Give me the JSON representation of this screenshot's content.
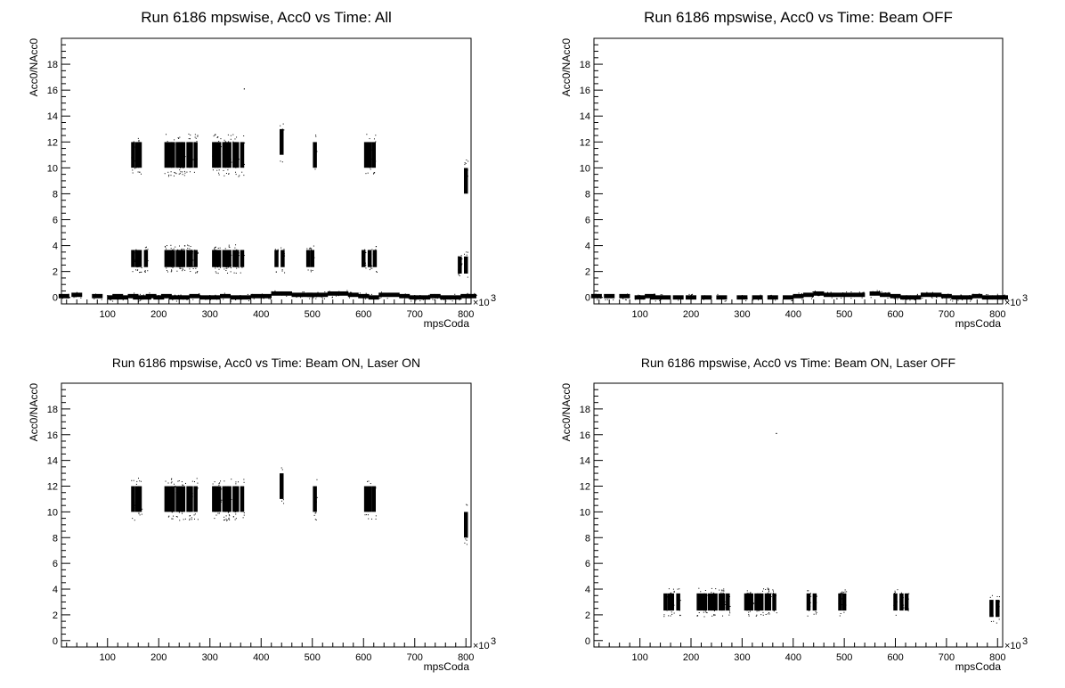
{
  "chart_data": [
    {
      "type": "scatter",
      "title": "Run 6186 mpswise, Acc0 vs Time: All",
      "xlabel": "mpsCoda",
      "ylabel": "Acc0/NAcc0",
      "x_multiplier": "×10",
      "x_multiplier_exp": "3",
      "xlim": [
        10,
        810
      ],
      "ylim": [
        -0.5,
        20
      ],
      "xticks": [
        100,
        200,
        300,
        400,
        500,
        600,
        700,
        800
      ],
      "yticks": [
        0,
        2,
        4,
        6,
        8,
        10,
        12,
        14,
        16,
        18
      ],
      "series": [
        {
          "x": [
            15,
            40,
            80,
            110,
            120,
            130,
            150,
            160,
            175,
            185,
            200,
            215,
            230,
            250,
            270,
            290,
            310,
            330,
            350,
            370,
            390,
            410,
            430,
            450,
            470,
            490,
            500,
            520,
            540,
            560,
            580,
            600,
            620,
            640,
            660,
            680,
            700,
            720,
            740,
            760,
            780,
            800,
            810
          ],
          "y": [
            0.1,
            0.2,
            0.1,
            0.0,
            0.1,
            0.0,
            0.1,
            0.0,
            0.0,
            0.1,
            0.0,
            0.1,
            0.0,
            0.0,
            0.1,
            0.0,
            0.0,
            0.1,
            0.0,
            0.0,
            0.1,
            0.1,
            0.3,
            0.3,
            0.2,
            0.2,
            0.2,
            0.2,
            0.3,
            0.3,
            0.2,
            0.1,
            0.0,
            0.2,
            0.2,
            0.1,
            0.0,
            0.0,
            0.1,
            0.0,
            0.0,
            0.1,
            0.1
          ]
        },
        {
          "x": [
            150,
            158,
            163,
            215,
            222,
            228,
            237,
            243,
            248,
            258,
            263,
            272,
            308,
            313,
            318,
            328,
            333,
            338,
            348,
            353,
            363,
            440,
            505,
            605,
            612,
            620,
            800
          ],
          "y": [
            11,
            11,
            11,
            11,
            11,
            11,
            11,
            11,
            11,
            11,
            11,
            11,
            11,
            11,
            11,
            11,
            11,
            11,
            11,
            11,
            11,
            12,
            11,
            11,
            11,
            11,
            9
          ]
        },
        {
          "x": [
            150,
            158,
            163,
            175,
            215,
            222,
            228,
            237,
            243,
            248,
            258,
            263,
            272,
            308,
            313,
            318,
            328,
            333,
            338,
            348,
            353,
            363,
            430,
            442,
            492,
            500,
            600,
            612,
            622,
            788,
            800
          ],
          "y": [
            3,
            3,
            3,
            3,
            3,
            3,
            3,
            3,
            3,
            3,
            3,
            3,
            3,
            3,
            3,
            3,
            3,
            3,
            3,
            3,
            3,
            3,
            3,
            3,
            3,
            3,
            3,
            3,
            3,
            2.5,
            2.5
          ]
        },
        {
          "x": [
            367
          ],
          "y": [
            16.1
          ]
        }
      ]
    },
    {
      "type": "scatter",
      "title": "Run 6186 mpswise, Acc0 vs Time: Beam OFF",
      "xlabel": "mpsCoda",
      "ylabel": "Acc0/NAcc0",
      "x_multiplier": "×10",
      "x_multiplier_exp": "3",
      "xlim": [
        10,
        810
      ],
      "ylim": [
        -0.5,
        20
      ],
      "xticks": [
        100,
        200,
        300,
        400,
        500,
        600,
        700,
        800
      ],
      "yticks": [
        0,
        2,
        4,
        6,
        8,
        10,
        12,
        14,
        16,
        18
      ],
      "series": [
        {
          "x": [
            15,
            40,
            70,
            100,
            120,
            130,
            150,
            175,
            200,
            230,
            260,
            300,
            330,
            360,
            390,
            410,
            430,
            450,
            470,
            490,
            510,
            530,
            560,
            580,
            600,
            620,
            640,
            660,
            680,
            700,
            720,
            740,
            760,
            780,
            800,
            810
          ],
          "y": [
            0.1,
            0.1,
            0.1,
            0.0,
            0.1,
            0.0,
            0.0,
            0.0,
            0.0,
            0.0,
            0.0,
            0.0,
            0.0,
            0.0,
            0.0,
            0.1,
            0.2,
            0.3,
            0.2,
            0.2,
            0.2,
            0.2,
            0.3,
            0.2,
            0.1,
            0.0,
            0.0,
            0.2,
            0.2,
            0.1,
            0.0,
            0.0,
            0.1,
            0.0,
            0.0,
            0.0
          ]
        }
      ]
    },
    {
      "type": "scatter",
      "title": "Run 6186 mpswise, Acc0 vs Time: Beam ON, Laser ON",
      "xlabel": "mpsCoda",
      "ylabel": "Acc0/NAcc0",
      "x_multiplier": "×10",
      "x_multiplier_exp": "3",
      "xlim": [
        10,
        810
      ],
      "ylim": [
        -0.5,
        20
      ],
      "xticks": [
        100,
        200,
        300,
        400,
        500,
        600,
        700,
        800
      ],
      "yticks": [
        0,
        2,
        4,
        6,
        8,
        10,
        12,
        14,
        16,
        18
      ],
      "series": [
        {
          "x": [
            150,
            158,
            163,
            215,
            222,
            228,
            237,
            243,
            248,
            258,
            263,
            272,
            308,
            313,
            318,
            328,
            333,
            338,
            348,
            353,
            363,
            440,
            505,
            605,
            612,
            620,
            800
          ],
          "y": [
            11,
            11,
            11,
            11,
            11,
            11,
            11,
            11,
            11,
            11,
            11,
            11,
            11,
            11,
            11,
            11,
            11,
            11,
            11,
            11,
            11,
            12,
            11,
            11,
            11,
            11,
            9
          ]
        }
      ]
    },
    {
      "type": "scatter",
      "title": "Run 6186 mpswise, Acc0 vs Time: Beam ON, Laser OFF",
      "xlabel": "mpsCoda",
      "ylabel": "Acc0/NAcc0",
      "x_multiplier": "×10",
      "x_multiplier_exp": "3",
      "xlim": [
        10,
        810
      ],
      "ylim": [
        -0.5,
        20
      ],
      "xticks": [
        100,
        200,
        300,
        400,
        500,
        600,
        700,
        800
      ],
      "yticks": [
        0,
        2,
        4,
        6,
        8,
        10,
        12,
        14,
        16,
        18
      ],
      "series": [
        {
          "x": [
            150,
            158,
            163,
            175,
            215,
            222,
            228,
            237,
            243,
            248,
            258,
            263,
            272,
            308,
            313,
            318,
            328,
            333,
            338,
            348,
            353,
            363,
            430,
            442,
            492,
            500,
            600,
            612,
            622,
            788,
            800
          ],
          "y": [
            3,
            3,
            3,
            3,
            3,
            3,
            3,
            3,
            3,
            3,
            3,
            3,
            3,
            3,
            3,
            3,
            3,
            3,
            3,
            3,
            3,
            3,
            3,
            3,
            3,
            3,
            3,
            3,
            3,
            2.5,
            2.5
          ]
        },
        {
          "x": [
            367
          ],
          "y": [
            16.1
          ]
        }
      ]
    }
  ]
}
